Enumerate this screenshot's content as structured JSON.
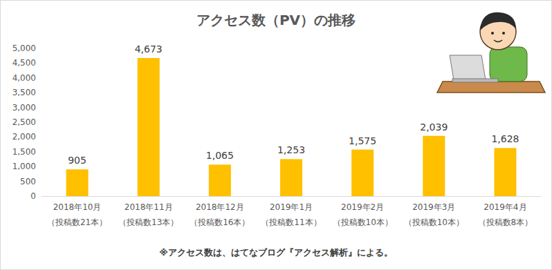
{
  "chart_data": {
    "type": "bar",
    "title": "アクセス数（PV）の推移",
    "categories": [
      "2018年10月\n（投稿数21本）",
      "2018年11月\n（投稿数13本）",
      "2018年12月\n（投稿数16本）",
      "2019年1月\n（投稿数11本）",
      "2019年2月\n（投稿数10本）",
      "2019年3月\n（投稿数10本）",
      "2019年4月\n（投稿数8本）"
    ],
    "values": [
      905,
      4673,
      1065,
      1253,
      1575,
      2039,
      1628
    ],
    "value_labels": [
      "905",
      "4,673",
      "1,065",
      "1,253",
      "1,575",
      "2,039",
      "1,628"
    ],
    "data_labels": true,
    "color": "#ffc000",
    "ylim": [
      0,
      5000
    ],
    "yticks": [
      0,
      {
        "value": 500,
        "label": "500"
      },
      {
        "value": 1000,
        "label": "1,000"
      },
      {
        "value": 1500,
        "label": "1,500"
      },
      {
        "value": 2000,
        "label": "2,000"
      },
      {
        "value": 2500,
        "label": "2,500"
      },
      {
        "value": 3000,
        "label": "3,000"
      },
      {
        "value": 3500,
        "label": "3,500"
      },
      {
        "value": 4000,
        "label": "4,000"
      },
      {
        "value": 4500,
        "label": "4,500"
      },
      {
        "value": 5000,
        "label": "5,000"
      }
    ],
    "grid": false,
    "annotations": [
      "※アクセス数は、はてなブログ『アクセス解析』による。"
    ]
  }
}
